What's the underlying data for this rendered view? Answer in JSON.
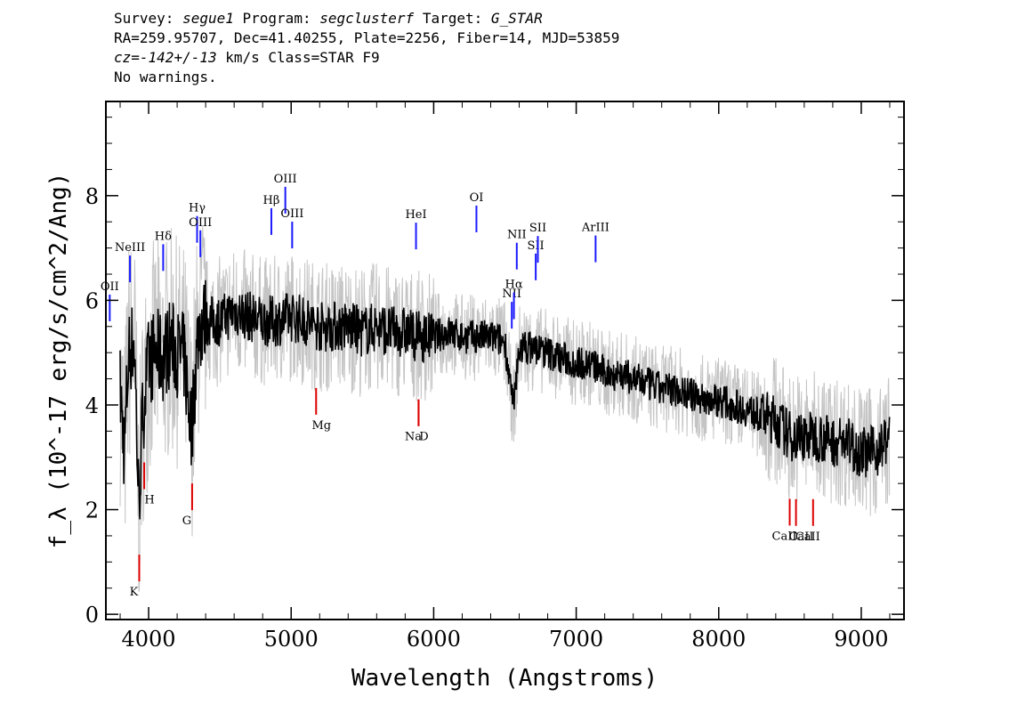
{
  "header": {
    "survey_label": "Survey:",
    "survey": "segue1",
    "program_label": "Program:",
    "program": "segclusterf",
    "target_label": "Target:",
    "target": "G_STAR",
    "line2": "RA=259.95707, Dec=41.40255, Plate=2256, Fiber=14, MJD=53859",
    "cz_label": "cz=",
    "cz_value": "-142+/-13",
    "cz_unit_class": " km/s Class=STAR F9",
    "warnings": "No warnings."
  },
  "chart_data": {
    "type": "line",
    "xlabel": "Wavelength (Angstroms)",
    "ylabel": "f_λ (10^-17 erg/s/cm^2/Ang)",
    "xlim": [
      3700,
      9300
    ],
    "ylim": [
      -0.1,
      9.8
    ],
    "x_ticks": [
      4000,
      5000,
      6000,
      7000,
      8000,
      9000
    ],
    "y_ticks": [
      0,
      2,
      4,
      6,
      8
    ],
    "series": [
      {
        "color": "#000000",
        "x": [
          3800,
          3830,
          3860,
          3900,
          3930,
          3960,
          4000,
          4050,
          4100,
          4150,
          4200,
          4250,
          4300,
          4350,
          4400,
          4500,
          4600,
          4700,
          4800,
          4900,
          5000,
          5100,
          5200,
          5300,
          5400,
          5500,
          5600,
          5700,
          5800,
          5900,
          6000,
          6100,
          6200,
          6300,
          6400,
          6500,
          6560,
          6600,
          6700,
          6800,
          6900,
          7000,
          7100,
          7200,
          7300,
          7400,
          7500,
          7600,
          7700,
          7800,
          7900,
          8000,
          8100,
          8200,
          8300,
          8400,
          8500,
          8600,
          8700,
          8800,
          8900,
          9000,
          9100,
          9200
        ],
        "y": [
          4.3,
          3.1,
          5.0,
          5.2,
          2.1,
          3.9,
          4.8,
          5.0,
          4.9,
          5.2,
          5.0,
          4.9,
          3.5,
          5.5,
          5.6,
          5.6,
          5.8,
          5.7,
          5.6,
          5.6,
          5.7,
          5.6,
          5.5,
          5.5,
          5.5,
          5.4,
          5.5,
          5.4,
          5.4,
          5.3,
          5.3,
          5.4,
          5.3,
          5.3,
          5.3,
          5.2,
          3.9,
          5.1,
          5.1,
          5.0,
          4.9,
          4.8,
          4.8,
          4.6,
          4.6,
          4.5,
          4.4,
          4.3,
          4.3,
          4.2,
          4.1,
          4.1,
          4.0,
          3.9,
          3.8,
          3.7,
          3.4,
          3.4,
          3.4,
          3.3,
          3.3,
          3.1,
          3.1,
          3.4
        ]
      }
    ],
    "emission_lines": [
      {
        "label": "NeIII",
        "x": 3869
      },
      {
        "label": "Hδ",
        "x": 4102
      },
      {
        "label": "Hγ",
        "x": 4340
      },
      {
        "label": "OIII",
        "x": 4363
      },
      {
        "label": "Hβ",
        "x": 4861
      },
      {
        "label": "OIII",
        "x": 4959
      },
      {
        "label": "OIII",
        "x": 5007
      },
      {
        "label": "HeI",
        "x": 5876
      },
      {
        "label": "OI",
        "x": 6300
      },
      {
        "label": "NII",
        "x": 6548
      },
      {
        "label": "Hα",
        "x": 6563
      },
      {
        "label": "NII",
        "x": 6583
      },
      {
        "label": "SII",
        "x": 6716
      },
      {
        "label": "SII",
        "x": 6731
      },
      {
        "label": "ArIII",
        "x": 7136
      },
      {
        "label": "OII",
        "x": 3727
      }
    ],
    "absorption_lines": [
      {
        "label": "K",
        "x": 3934
      },
      {
        "label": "H",
        "x": 3969
      },
      {
        "label": "G",
        "x": 4305
      },
      {
        "label": "Mg",
        "x": 5175
      },
      {
        "label": "Na",
        "x": 5894
      },
      {
        "label": "D",
        "x": 5894
      },
      {
        "label": "CaII",
        "x": 8498
      },
      {
        "label": "CaII",
        "x": 8542
      },
      {
        "label": "CaII",
        "x": 8662
      }
    ]
  }
}
